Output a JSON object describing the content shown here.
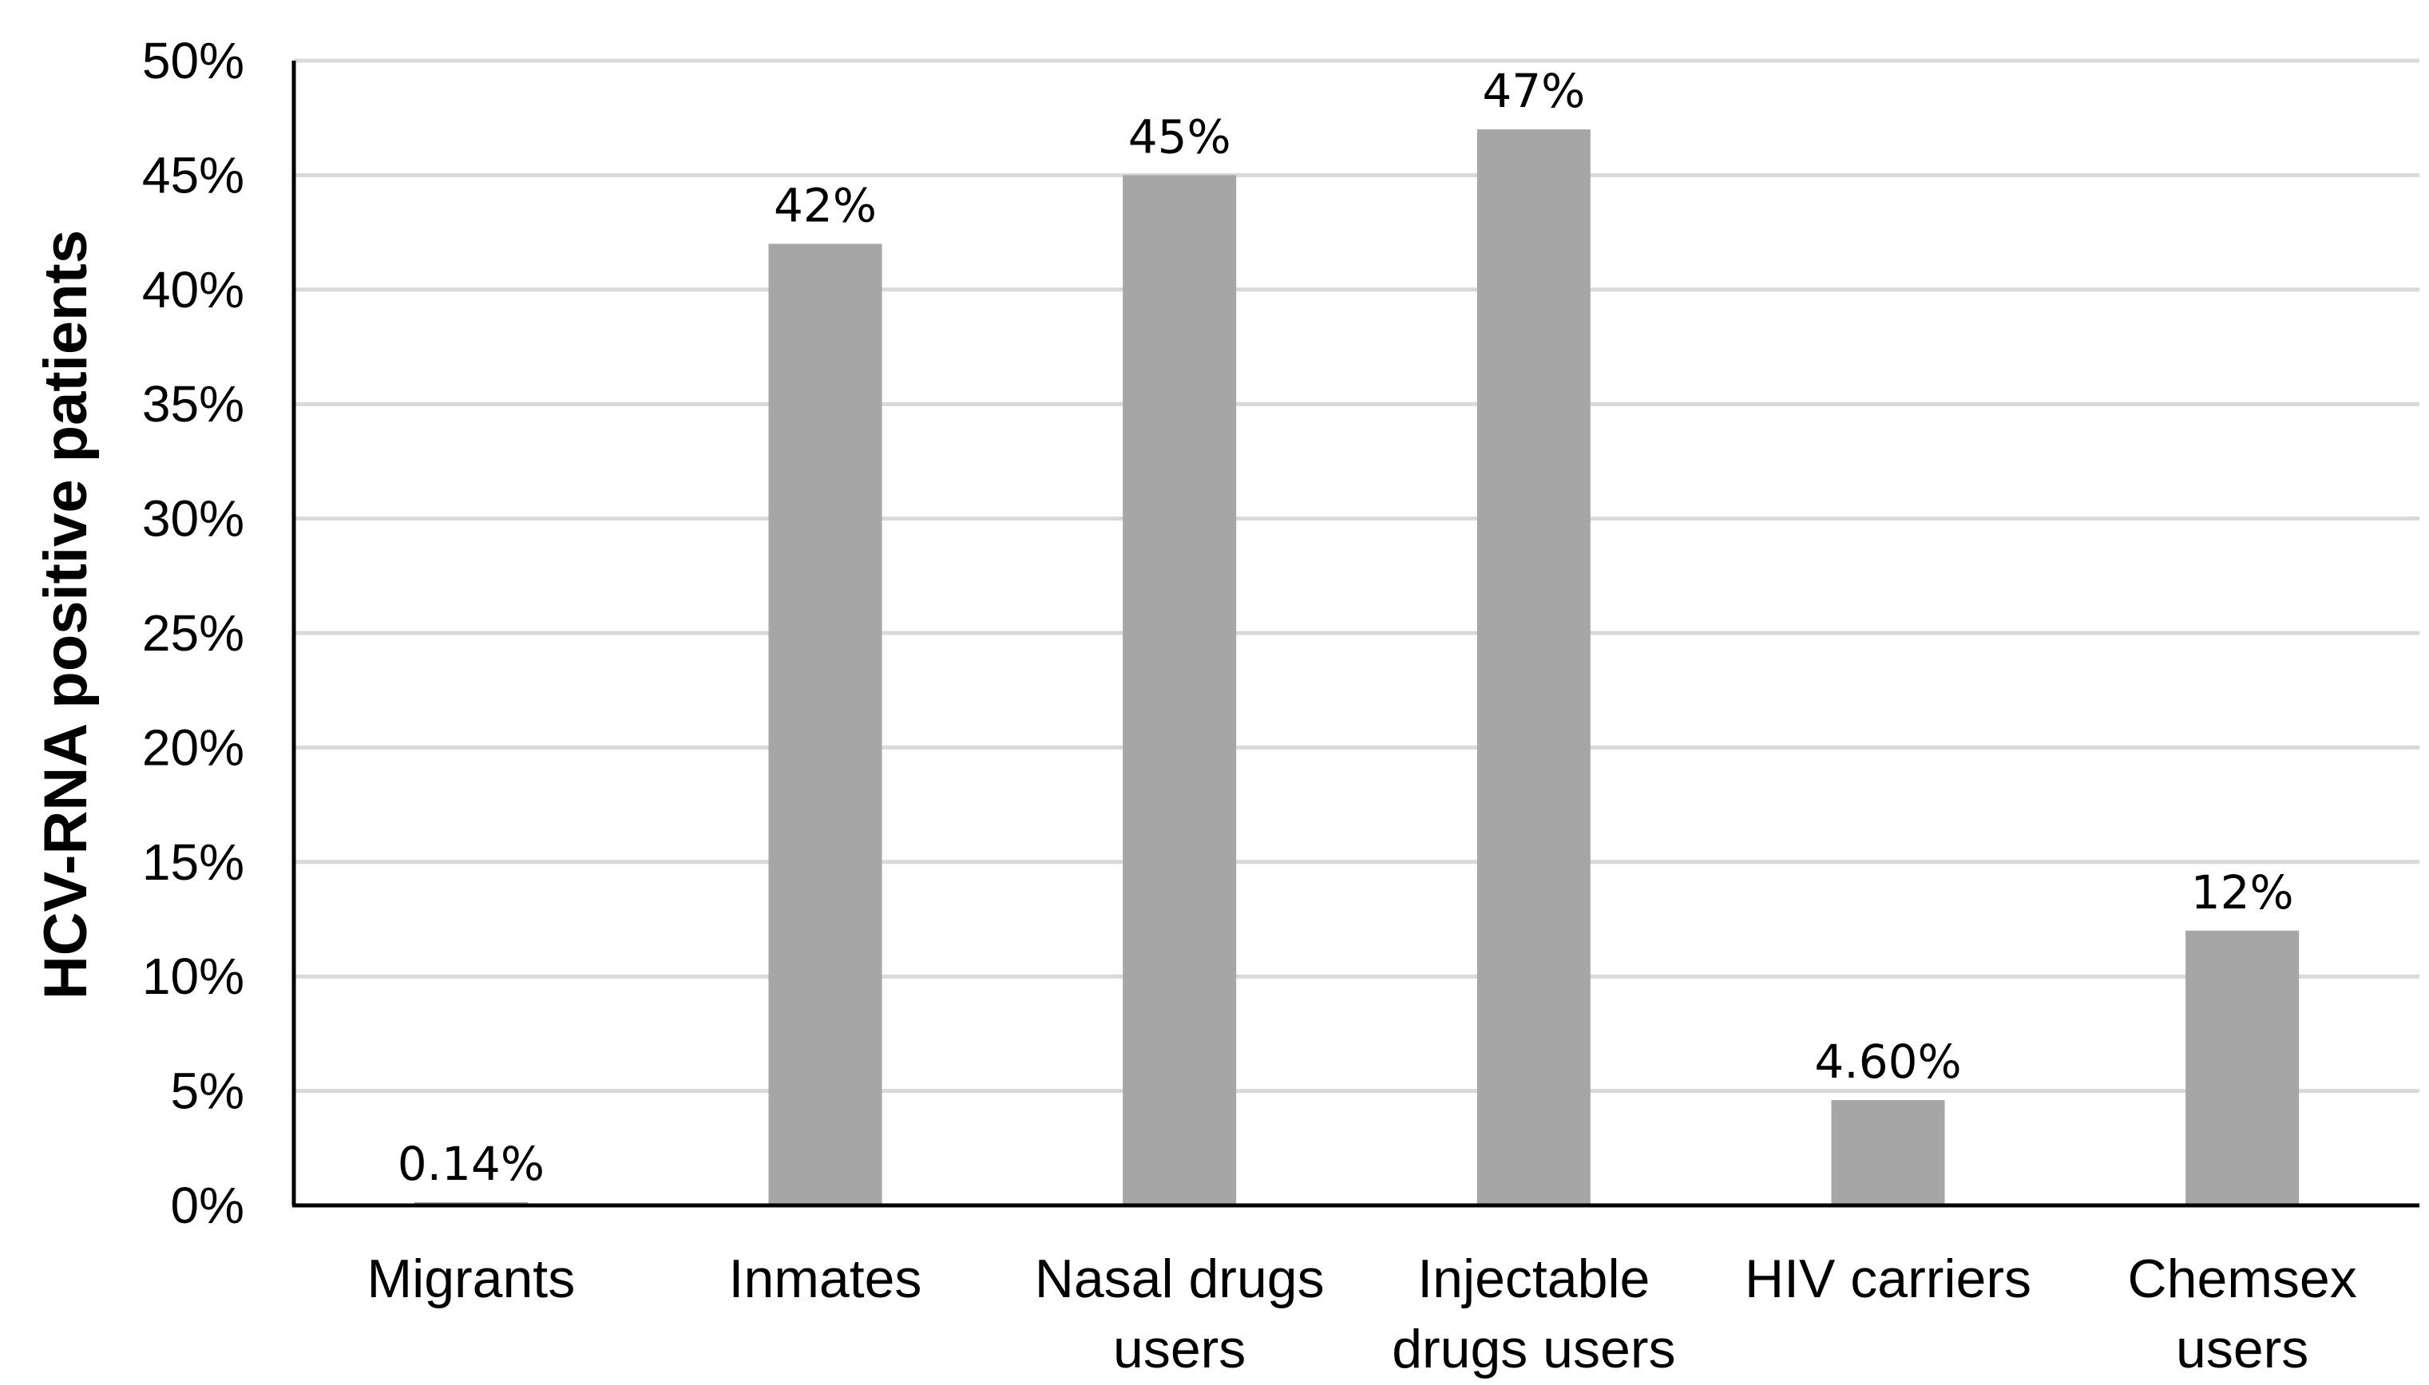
{
  "chart_data": {
    "type": "bar",
    "title": "",
    "xlabel": "",
    "ylabel": "HCV-RNA positive patients",
    "ylim": [
      0,
      50
    ],
    "ytick_step": 5,
    "ytick_format": "percent",
    "grid": true,
    "colors": {
      "bar": "#a6a6a6",
      "grid": "#d9d9d9",
      "axis": "#000000"
    },
    "categories": [
      [
        "Migrants"
      ],
      [
        "Inmates"
      ],
      [
        "Nasal drugs",
        "users"
      ],
      [
        "Injectable",
        "drugs users"
      ],
      [
        "HIV carriers"
      ],
      [
        "Chemsex",
        "users"
      ]
    ],
    "values": [
      0.14,
      42,
      45,
      47,
      4.6,
      12
    ],
    "data_labels": [
      "0.14%",
      "42%",
      "45%",
      "47%",
      "4.60%",
      "12%"
    ]
  }
}
